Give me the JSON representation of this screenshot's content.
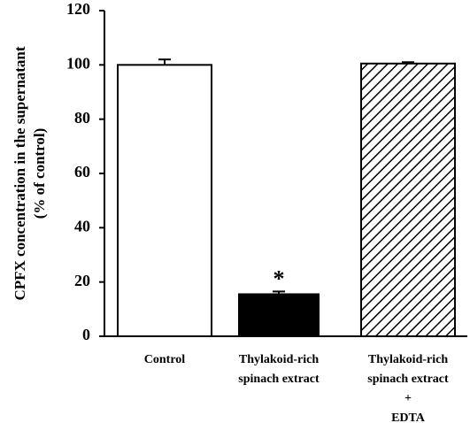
{
  "chart_data": {
    "type": "bar",
    "y_label": [
      "CPFX concentration in the supernatant",
      "(% of control)"
    ],
    "categories": [
      [
        "Control"
      ],
      [
        "Thylakoid-rich",
        "spinach extract"
      ],
      [
        "Thylakoid-rich",
        "spinach extract",
        "+",
        "EDTA"
      ]
    ],
    "values": [
      100,
      15.5,
      100.5
    ],
    "errors": [
      2,
      1,
      0.5
    ],
    "fills": [
      "white",
      "black",
      "diagonal-hatch"
    ],
    "significance_labels": [
      null,
      "*",
      null
    ],
    "ylim": [
      0,
      120
    ],
    "yticks": [
      0,
      20,
      40,
      60,
      80,
      100,
      120
    ]
  }
}
